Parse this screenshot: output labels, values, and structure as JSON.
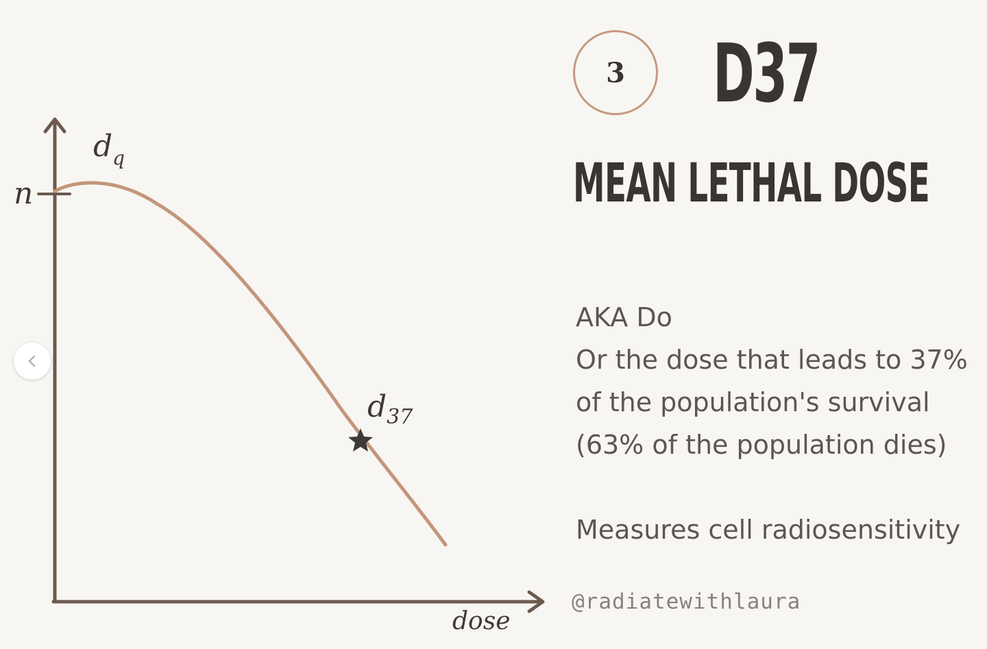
{
  "header": {
    "step_number": "3",
    "title": "D37",
    "subtitle": "MEAN LETHAL DOSE"
  },
  "description": {
    "line1": "AKA Do",
    "line2": "Or the dose that leads to 37%",
    "line3": "of the population's survival",
    "line4": "(63% of the population dies)",
    "line5": "Measures cell radiosensitivity"
  },
  "footer": {
    "handle": "@radiatewithlaura"
  },
  "diagram": {
    "y_tick_label": "n",
    "x_axis_label": "dose",
    "shoulder_label_main": "d",
    "shoulder_label_sub": "q",
    "marker_label_main": "d",
    "marker_label_sub": "37"
  },
  "navigation": {
    "prev_icon": "chevron-left-icon"
  },
  "colors": {
    "background": "#f8f6f3",
    "axis": "#6b5a4e",
    "curve": "#c4957a",
    "text_dark": "#3a3532",
    "circle_border": "#c49a7e"
  }
}
